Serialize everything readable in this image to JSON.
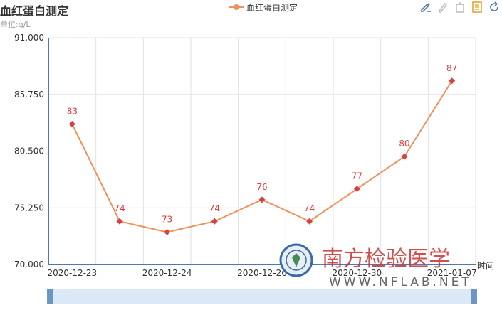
{
  "header": {
    "title": "血红蛋白测定",
    "unit": "单位:g/L"
  },
  "legend": {
    "label": "血红蛋白测定"
  },
  "toolbox": {
    "icons": [
      "edit-icon",
      "pencil-icon",
      "clear-icon",
      "data-view-icon",
      "refresh-icon"
    ]
  },
  "chart_data": {
    "type": "line",
    "title": "血红蛋白测定",
    "subtitle": "单位:g/L",
    "x": [
      "2020-12-23",
      "",
      "2020-12-24",
      "",
      "2020-12-26",
      "",
      "2020-12-30",
      "",
      "2021-01-07"
    ],
    "series": [
      {
        "name": "血红蛋白测定",
        "color": "#f0905a",
        "marker_color": "#d94040",
        "values": [
          83,
          74,
          73,
          74,
          76,
          74,
          77,
          80,
          87
        ]
      }
    ],
    "yticks": [
      "70.000",
      "75.250",
      "80.500",
      "85.750",
      "91.000"
    ],
    "ylim": [
      70,
      91
    ],
    "xlabel": "时间",
    "grid": true,
    "label_color": "#d94040"
  },
  "watermark": {
    "text_cn": "南方检验医学",
    "text_url": "WWW.NFLAB.NET"
  }
}
